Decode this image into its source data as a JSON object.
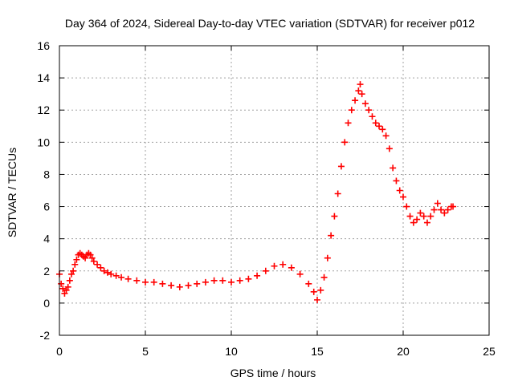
{
  "chart_data": {
    "type": "scatter",
    "title": "Day 364 of 2024, Sidereal Day-to-day VTEC variation (SDTVAR) for receiver p012",
    "xlabel": "GPS time / hours",
    "ylabel": "SDTVAR / TECUs",
    "xlim": [
      0,
      25
    ],
    "ylim": [
      -2,
      16
    ],
    "x_ticks": [
      "0",
      "5",
      "10",
      "15",
      "20",
      "25"
    ],
    "y_ticks": [
      "-2",
      "0",
      "2",
      "4",
      "6",
      "8",
      "10",
      "12",
      "14",
      "16"
    ],
    "grid": true,
    "marker": "+",
    "series_color": "#ff0000",
    "series": [
      {
        "name": "SDTVAR",
        "x": [
          0.0,
          0.1,
          0.2,
          0.3,
          0.4,
          0.5,
          0.6,
          0.7,
          0.8,
          0.9,
          1.0,
          1.1,
          1.2,
          1.3,
          1.4,
          1.5,
          1.6,
          1.7,
          1.8,
          1.9,
          2.0,
          2.2,
          2.4,
          2.6,
          2.8,
          3.0,
          3.3,
          3.6,
          4.0,
          4.5,
          5.0,
          5.5,
          6.0,
          6.5,
          7.0,
          7.5,
          8.0,
          8.5,
          9.0,
          9.5,
          10.0,
          10.5,
          11.0,
          11.5,
          12.0,
          12.5,
          13.0,
          13.5,
          14.0,
          14.5,
          14.8,
          15.0,
          15.2,
          15.4,
          15.6,
          15.8,
          16.0,
          16.2,
          16.4,
          16.6,
          16.8,
          17.0,
          17.2,
          17.4,
          17.5,
          17.6,
          17.8,
          18.0,
          18.2,
          18.4,
          18.6,
          18.8,
          19.0,
          19.2,
          19.4,
          19.6,
          19.8,
          20.0,
          20.2,
          20.4,
          20.6,
          20.8,
          21.0,
          21.2,
          21.4,
          21.6,
          21.8,
          22.0,
          22.2,
          22.4,
          22.6,
          22.8,
          22.9
        ],
        "y": [
          1.8,
          1.2,
          0.9,
          0.6,
          0.8,
          1.0,
          1.4,
          1.8,
          2.0,
          2.4,
          2.7,
          3.0,
          3.1,
          3.0,
          2.9,
          2.8,
          3.0,
          3.1,
          3.0,
          2.8,
          2.6,
          2.4,
          2.2,
          2.0,
          1.9,
          1.8,
          1.7,
          1.6,
          1.5,
          1.4,
          1.3,
          1.3,
          1.2,
          1.1,
          1.0,
          1.1,
          1.2,
          1.3,
          1.4,
          1.4,
          1.3,
          1.4,
          1.5,
          1.7,
          2.0,
          2.3,
          2.4,
          2.2,
          1.8,
          1.2,
          0.7,
          0.2,
          0.8,
          1.6,
          2.8,
          4.2,
          5.4,
          6.8,
          8.5,
          10.0,
          11.2,
          12.0,
          12.6,
          13.2,
          13.6,
          13.0,
          12.4,
          12.0,
          11.6,
          11.2,
          11.0,
          10.8,
          10.4,
          9.6,
          8.4,
          7.6,
          7.0,
          6.6,
          6.0,
          5.4,
          5.0,
          5.2,
          5.6,
          5.4,
          5.0,
          5.4,
          5.8,
          6.2,
          5.8,
          5.6,
          5.8,
          6.0,
          6.0
        ]
      }
    ]
  }
}
